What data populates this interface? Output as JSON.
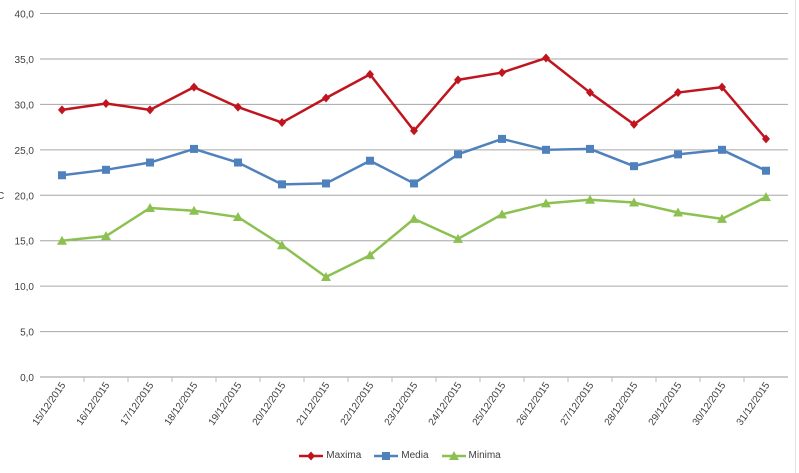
{
  "chart_data": {
    "type": "line",
    "title": "",
    "xlabel": "",
    "ylabel": "C",
    "ylim": [
      0,
      40
    ],
    "yticks": [
      "0,0",
      "5,0",
      "10,0",
      "15,0",
      "20,0",
      "25,0",
      "30,0",
      "35,0",
      "40,0"
    ],
    "ytick_values": [
      0,
      5,
      10,
      15,
      20,
      25,
      30,
      35,
      40
    ],
    "grid": true,
    "legend_position": "bottom",
    "categories": [
      "15/12/2015",
      "16/12/2015",
      "17/12/2015",
      "18/12/2015",
      "19/12/2015",
      "20/12/2015",
      "21/12/2015",
      "22/12/2015",
      "23/12/2015",
      "24/12/2015",
      "25/12/2015",
      "26/12/2015",
      "27/12/2015",
      "28/12/2015",
      "29/12/2015",
      "30/12/2015",
      "31/12/2015"
    ],
    "series": [
      {
        "name": "Maxima",
        "color": "#c0141e",
        "marker": "diamond",
        "values": [
          29.4,
          30.1,
          29.4,
          31.9,
          29.7,
          28.0,
          30.7,
          33.3,
          27.1,
          32.7,
          33.5,
          35.1,
          31.3,
          27.8,
          31.3,
          31.9,
          26.2
        ]
      },
      {
        "name": "Media",
        "color": "#4f81bd",
        "marker": "square",
        "values": [
          22.2,
          22.8,
          23.6,
          25.1,
          23.6,
          21.2,
          21.3,
          23.8,
          21.3,
          24.5,
          26.2,
          25.0,
          25.1,
          23.2,
          24.5,
          25.0,
          22.7
        ]
      },
      {
        "name": "Minima",
        "color": "#8cc152",
        "marker": "triangle",
        "values": [
          15.0,
          15.5,
          18.6,
          18.3,
          17.6,
          14.5,
          11.0,
          13.4,
          17.4,
          15.2,
          17.9,
          19.1,
          19.5,
          19.2,
          18.1,
          17.4,
          19.8
        ]
      }
    ]
  }
}
